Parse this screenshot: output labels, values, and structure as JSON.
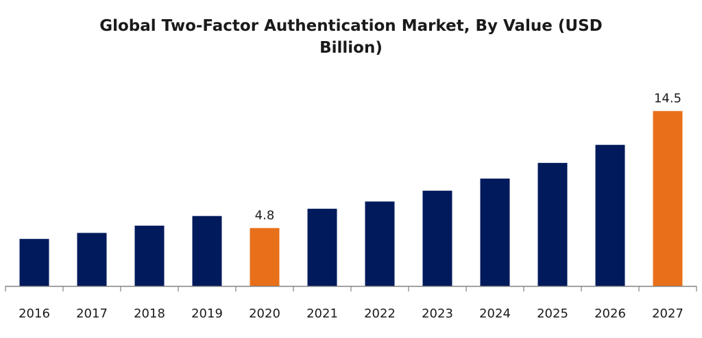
{
  "chart_data": {
    "type": "bar",
    "title_line1": "Global Two-Factor Authentication Market, By Value (USD",
    "title_line2": "Billion)",
    "categories": [
      "2016",
      "2017",
      "2018",
      "2019",
      "2020",
      "2021",
      "2022",
      "2023",
      "2024",
      "2025",
      "2026",
      "2027"
    ],
    "values": [
      3.9,
      4.4,
      5.0,
      5.8,
      4.8,
      6.4,
      7.0,
      7.9,
      8.9,
      10.2,
      11.7,
      14.5
    ],
    "data_labels": [
      "",
      "",
      "",
      "",
      "4.8",
      "",
      "",
      "",
      "",
      "",
      "",
      "14.5"
    ],
    "highlight": [
      false,
      false,
      false,
      false,
      true,
      false,
      false,
      false,
      false,
      false,
      false,
      true
    ],
    "xlabel": "",
    "ylabel": "",
    "ylim": [
      0,
      16.5
    ],
    "grid": false,
    "colors": {
      "bar": "#001a5c",
      "highlight": "#e8701a",
      "axis": "#808080"
    }
  }
}
